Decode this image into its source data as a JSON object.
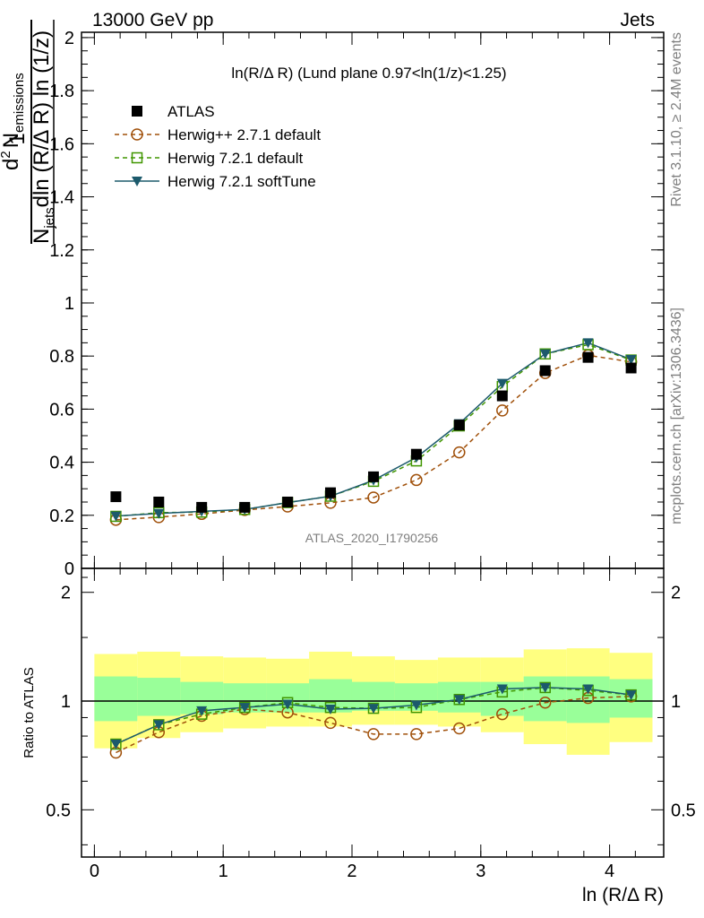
{
  "header": {
    "left": "13000 GeV pp",
    "right": "Jets"
  },
  "side_labels": {
    "rivet": "Rivet 3.1.10, ≥ 2.4M events",
    "mcplots": "mcplots.cern.ch [arXiv:1306.3436]"
  },
  "watermark": "ATLAS_2020_I1790256",
  "chart_data": [
    {
      "type": "line",
      "title": "ln(R/Δ R) (Lund plane 0.97<ln(1/z)<1.25)",
      "ylabel_parts": {
        "frac_top": "1",
        "frac_bottom": "N",
        "frac_bottom_sub": "jets",
        "numerator": "d",
        "numerator_sup": "2",
        "numerator_n": "N",
        "numerator_sub": "emissions",
        "denominator": "dln (R/Δ R) ln (1/z)"
      },
      "xlim": [
        -0.1,
        4.42
      ],
      "ylim": [
        0,
        2.02
      ],
      "yticks": [
        "0",
        "0.2",
        "0.4",
        "0.6",
        "0.8",
        "1",
        "1.2",
        "1.4",
        "1.6",
        "1.8",
        "2"
      ],
      "x": [
        0.167,
        0.5,
        0.833,
        1.167,
        1.5,
        1.833,
        2.167,
        2.5,
        2.833,
        3.167,
        3.5,
        3.833,
        4.167
      ],
      "series": [
        {
          "name": "ATLAS",
          "marker": "filled-square",
          "color": "#000000",
          "values": [
            0.27,
            0.25,
            0.23,
            0.23,
            0.25,
            0.285,
            0.345,
            0.43,
            0.54,
            0.65,
            0.745,
            0.795,
            0.755
          ]
        },
        {
          "name": "Herwig++ 2.7.1 default",
          "marker": "open-circle",
          "color": "#a0500a",
          "values": [
            0.183,
            0.193,
            0.205,
            0.22,
            0.233,
            0.247,
            0.267,
            0.333,
            0.437,
            0.595,
            0.736,
            0.803,
            0.778
          ]
        },
        {
          "name": "Herwig 7.2.1 default",
          "marker": "open-square",
          "color": "#409600",
          "values": [
            0.196,
            0.21,
            0.212,
            0.222,
            0.248,
            0.272,
            0.328,
            0.405,
            0.537,
            0.685,
            0.808,
            0.843,
            0.785
          ]
        },
        {
          "name": "Herwig 7.2.1 softTune",
          "marker": "filled-triangle-down",
          "color": "#1c5a6c",
          "values": [
            0.197,
            0.207,
            0.215,
            0.222,
            0.248,
            0.272,
            0.332,
            0.418,
            0.545,
            0.697,
            0.808,
            0.85,
            0.787
          ]
        }
      ]
    },
    {
      "type": "line",
      "ylabel": "Ratio to ATLAS",
      "xlabel": "ln (R/Δ R)",
      "xlim": [
        -0.1,
        4.42
      ],
      "ylim": [
        0.37,
        2.33
      ],
      "yticks": [
        "0.5",
        "1",
        "2"
      ],
      "xticks": [
        "0",
        "1",
        "2",
        "3",
        "4"
      ],
      "x": [
        0.167,
        0.5,
        0.833,
        1.167,
        1.5,
        1.833,
        2.167,
        2.5,
        2.833,
        3.167,
        3.5,
        3.833,
        4.167
      ],
      "bands": {
        "yellow_color": "#ffff80",
        "green_color": "#99ff99",
        "edges": [
          0.0,
          0.333,
          0.667,
          1.0,
          1.333,
          1.667,
          2.0,
          2.333,
          2.667,
          3.0,
          3.333,
          3.667,
          4.0,
          4.333
        ],
        "yellow_low": [
          0.74,
          0.79,
          0.82,
          0.84,
          0.85,
          0.85,
          0.86,
          0.86,
          0.85,
          0.82,
          0.76,
          0.71,
          0.77
        ],
        "yellow_high": [
          1.35,
          1.37,
          1.33,
          1.32,
          1.31,
          1.37,
          1.33,
          1.3,
          1.32,
          1.32,
          1.39,
          1.4,
          1.36
        ],
        "green_low": [
          0.88,
          0.91,
          0.92,
          0.93,
          0.93,
          0.93,
          0.94,
          0.94,
          0.93,
          0.91,
          0.88,
          0.87,
          0.9
        ],
        "green_high": [
          1.17,
          1.16,
          1.13,
          1.12,
          1.12,
          1.15,
          1.13,
          1.12,
          1.13,
          1.13,
          1.17,
          1.17,
          1.15
        ]
      },
      "series": [
        {
          "name": "Herwig++ 2.7.1 default",
          "color": "#a0500a",
          "values": [
            0.72,
            0.82,
            0.91,
            0.95,
            0.93,
            0.87,
            0.81,
            0.81,
            0.84,
            0.92,
            0.99,
            1.02,
            1.03
          ]
        },
        {
          "name": "Herwig 7.2.1 default",
          "color": "#409600",
          "values": [
            0.76,
            0.86,
            0.92,
            0.96,
            0.99,
            0.96,
            0.955,
            0.96,
            1.01,
            1.06,
            1.09,
            1.07,
            1.04
          ]
        },
        {
          "name": "Herwig 7.2.1 softTune",
          "color": "#1c5a6c",
          "values": [
            0.76,
            0.86,
            0.94,
            0.96,
            0.98,
            0.95,
            0.955,
            0.975,
            1.01,
            1.08,
            1.09,
            1.08,
            1.04
          ]
        }
      ]
    }
  ]
}
